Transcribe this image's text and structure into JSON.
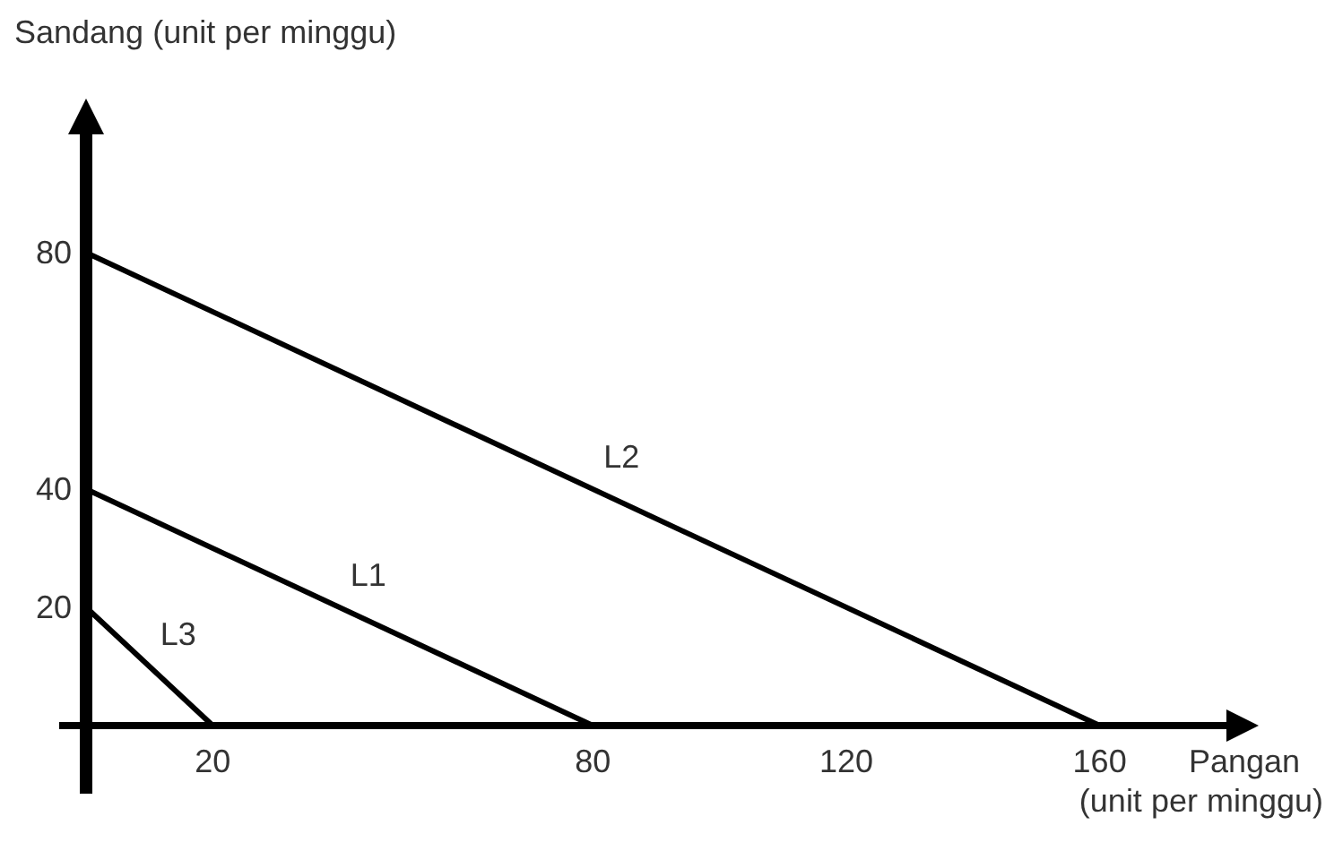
{
  "chart_data": {
    "type": "line",
    "ylabel": "Sandang (unit per minggu)",
    "xlabel": "Pangan\n(unit per minggu)",
    "xlim": [
      0,
      180
    ],
    "ylim": [
      0,
      100
    ],
    "xticks": [
      20,
      80,
      120,
      160
    ],
    "yticks": [
      20,
      40,
      80
    ],
    "grid": false,
    "legend": false,
    "marker": "none",
    "line_style": "solid",
    "series": [
      {
        "name": "L1",
        "color": "#000000",
        "x": [
          0,
          80
        ],
        "values": [
          40,
          0
        ]
      },
      {
        "name": "L2",
        "color": "#000000",
        "x": [
          0,
          160
        ],
        "values": [
          80,
          0
        ]
      },
      {
        "name": "L3",
        "color": "#000000",
        "x": [
          0,
          20
        ],
        "values": [
          20,
          0
        ]
      }
    ]
  }
}
